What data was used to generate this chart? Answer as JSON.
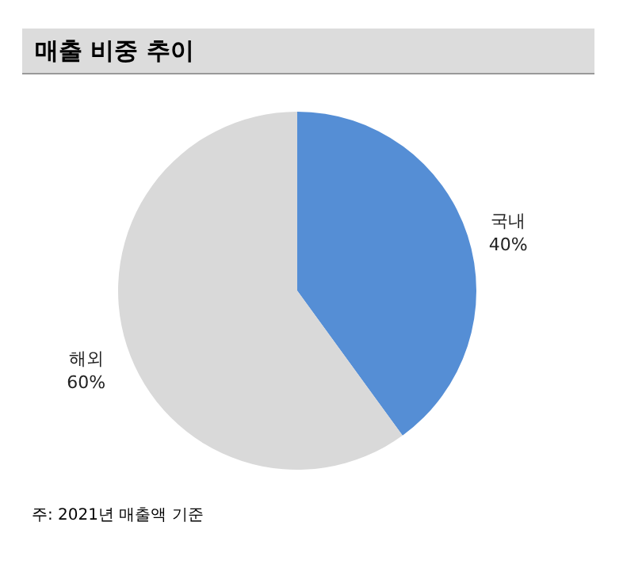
{
  "chart_data": {
    "type": "pie",
    "title": "매출 비중 추이",
    "categories": [
      "국내",
      "해외"
    ],
    "values": [
      40,
      60
    ],
    "value_labels": [
      "40%",
      "60%"
    ],
    "colors": [
      "#558ed5",
      "#d9d9d9"
    ],
    "annotations": [
      "주: 2021년 매출액 기준"
    ]
  }
}
